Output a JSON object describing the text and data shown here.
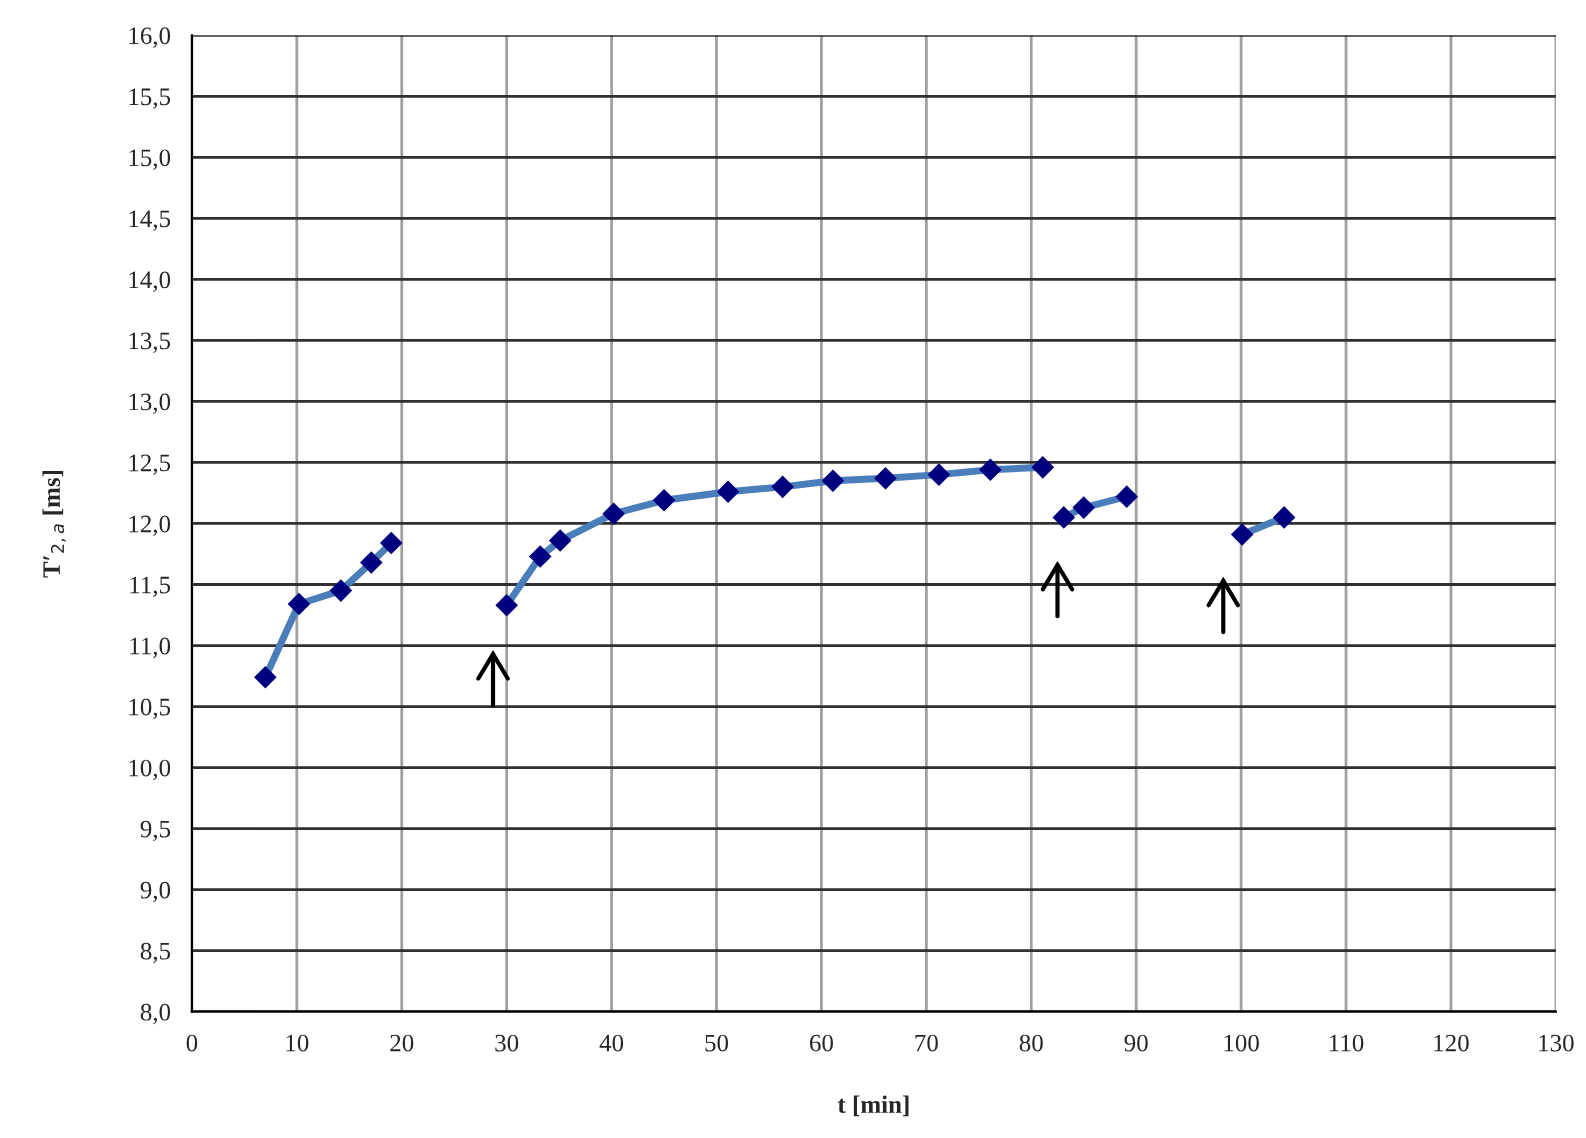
{
  "chart_data": {
    "type": "line",
    "xlabel": "t [min]",
    "ylabel": "T′$_{2,a}$ [ms]",
    "xlim": [
      0,
      130
    ],
    "xticks": [
      0,
      10,
      20,
      30,
      40,
      50,
      60,
      70,
      80,
      90,
      100,
      110,
      120,
      130
    ],
    "ylim": [
      8,
      16
    ],
    "yticks": [
      {
        "value": 8,
        "label": "8,0"
      },
      {
        "value": 8.5,
        "label": "8,5"
      },
      {
        "value": 9,
        "label": "9,0"
      },
      {
        "value": 9.5,
        "label": "9,5"
      },
      {
        "value": 10,
        "label": "10,0"
      },
      {
        "value": 10.5,
        "label": "10,5"
      },
      {
        "value": 11,
        "label": "11,0"
      },
      {
        "value": 11.5,
        "label": "11,5"
      },
      {
        "value": 12,
        "label": "12,0"
      },
      {
        "value": 12.5,
        "label": "12,5"
      },
      {
        "value": 13,
        "label": "13,0"
      },
      {
        "value": 13.5,
        "label": "13,5"
      },
      {
        "value": 14,
        "label": "14,0"
      },
      {
        "value": 14.5,
        "label": "14,5"
      },
      {
        "value": 15,
        "label": "15,0"
      },
      {
        "value": 15.5,
        "label": "15,5"
      },
      {
        "value": 16,
        "label": "16,0"
      }
    ],
    "grid": true,
    "marker": "diamond",
    "line_style": "solid",
    "series": [
      {
        "color": "#4a7ebb",
        "x": [
          7,
          10.2,
          14.2,
          17.1,
          19
        ],
        "values": [
          10.74,
          11.34,
          11.45,
          11.68,
          11.84
        ]
      },
      {
        "color": "#4a7ebb",
        "x": [
          30,
          33.2,
          35.1,
          40.2,
          45,
          51.1,
          56.3,
          61.1,
          66.1,
          71.2,
          76.1,
          81.1
        ],
        "values": [
          11.33,
          11.73,
          11.86,
          12.08,
          12.19,
          12.26,
          12.3,
          12.35,
          12.37,
          12.4,
          12.44,
          12.46
        ]
      },
      {
        "color": "#4a7ebb",
        "x": [
          83.1,
          85,
          89.1
        ],
        "values": [
          12.05,
          12.13,
          12.22
        ]
      },
      {
        "color": "#4a7ebb",
        "x": [
          100.1,
          104.1
        ],
        "values": [
          11.91,
          12.05
        ]
      }
    ]
  }
}
